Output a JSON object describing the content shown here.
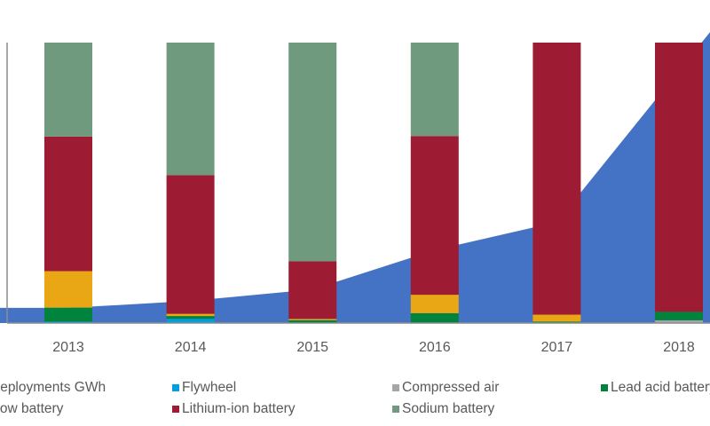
{
  "chart_data": {
    "type": "bar",
    "stacked": true,
    "categories": [
      "2013",
      "2014",
      "2015",
      "2016",
      "2017",
      "2018"
    ],
    "value_unit": "percent share (estimated, no axis printed)",
    "series": [
      {
        "name": "Flywheel",
        "color": "#00a0e0",
        "values": [
          0.5,
          1.5,
          0,
          0,
          0,
          0
        ]
      },
      {
        "name": "Compressed air",
        "color": "#a6a6a6",
        "values": [
          0,
          0,
          0,
          0,
          0,
          1
        ]
      },
      {
        "name": "Lead acid battery",
        "color": "#00843d",
        "values": [
          5,
          1,
          1,
          3.5,
          0.5,
          3
        ]
      },
      {
        "name": "Flow battery",
        "color": "#e9a615",
        "values": [
          13,
          0.8,
          0.5,
          6.6,
          2.5,
          0
        ]
      },
      {
        "name": "Lithium-ion battery",
        "color": "#9e1b34",
        "values": [
          48,
          49.4,
          20.5,
          56.6,
          97,
          96
        ]
      },
      {
        "name": "Sodium battery",
        "color": "#6f9a7e",
        "values": [
          33.5,
          47.3,
          78,
          33.3,
          0,
          0
        ]
      }
    ],
    "area_series": {
      "name": "Deployments GWh",
      "color": "#4472c4",
      "values_fraction_of_axis_max": [
        0.054,
        0.079,
        0.12,
        0.26,
        0.36,
        0.9
      ]
    },
    "ylim": [
      0,
      100
    ],
    "grid": false,
    "legend_position": "bottom"
  },
  "legend": {
    "row1": [
      "Deployments GWh",
      "Flywheel",
      "Compressed air",
      "Lead acid battery"
    ],
    "row2": [
      "Flow battery",
      "Lithium-ion battery",
      "Sodium battery"
    ]
  }
}
